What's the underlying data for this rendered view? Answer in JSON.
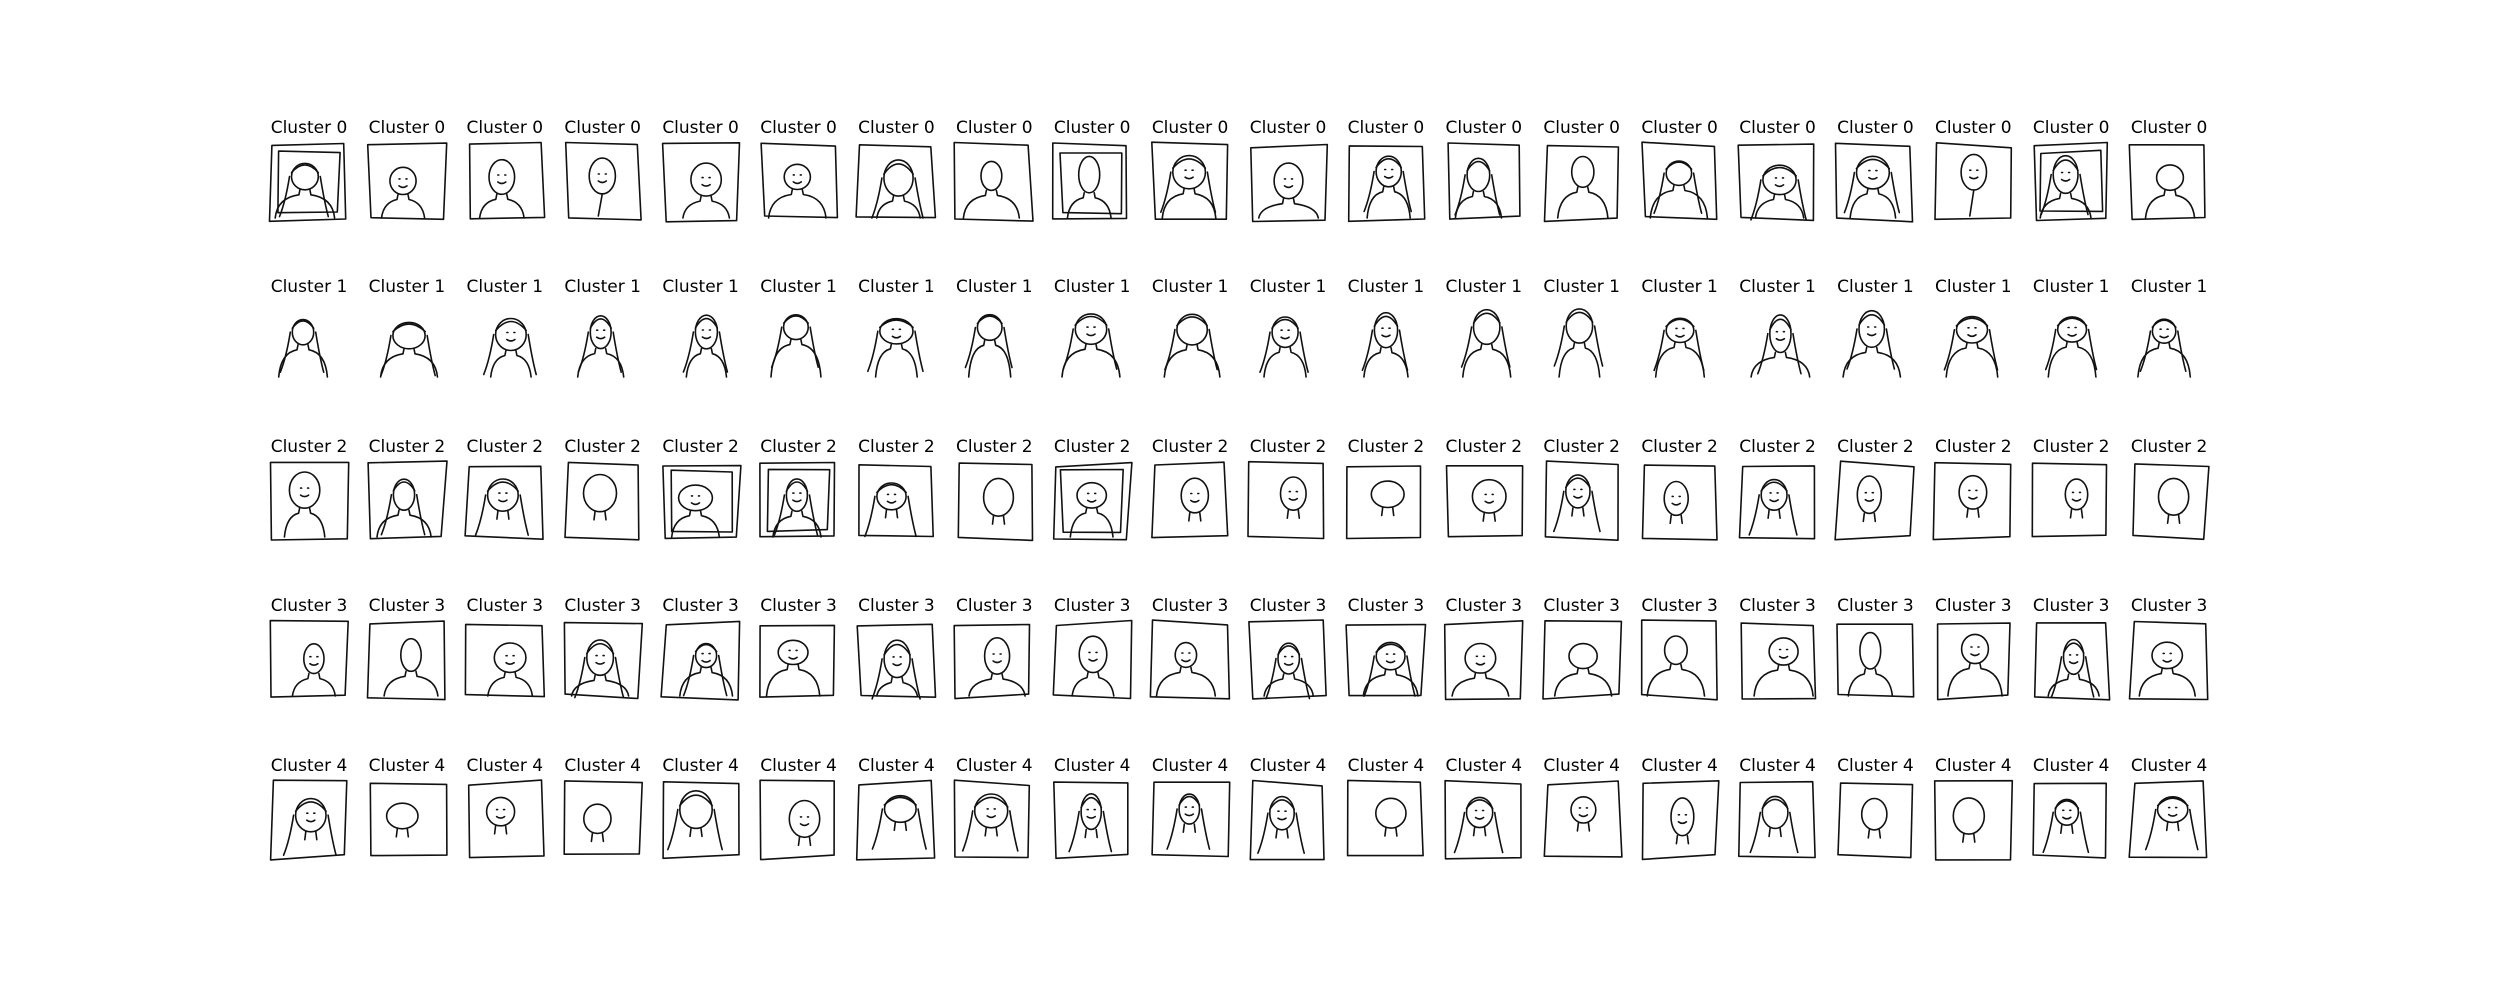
{
  "figure": {
    "rows": [
      {
        "cluster_label": "Cluster 0",
        "items": [
          {
            "label": "Cluster 0",
            "sketch": "portrait-in-frame"
          },
          {
            "label": "Cluster 0",
            "sketch": "figure-in-frame"
          },
          {
            "label": "Cluster 0",
            "sketch": "figure-in-frame"
          },
          {
            "label": "Cluster 0",
            "sketch": "stick-figure-in-frame"
          },
          {
            "label": "Cluster 0",
            "sketch": "figure-in-frame"
          },
          {
            "label": "Cluster 0",
            "sketch": "bust-in-frame"
          },
          {
            "label": "Cluster 0",
            "sketch": "figure-in-frame"
          },
          {
            "label": "Cluster 0",
            "sketch": "portrait-in-frame"
          },
          {
            "label": "Cluster 0",
            "sketch": "portrait-in-frame"
          },
          {
            "label": "Cluster 0",
            "sketch": "bust-in-frame"
          },
          {
            "label": "Cluster 0",
            "sketch": "bust-in-frame"
          },
          {
            "label": "Cluster 0",
            "sketch": "bust-in-frame"
          },
          {
            "label": "Cluster 0",
            "sketch": "bust-in-frame"
          },
          {
            "label": "Cluster 0",
            "sketch": "bust-in-frame"
          },
          {
            "label": "Cluster 0",
            "sketch": "bust-in-frame"
          },
          {
            "label": "Cluster 0",
            "sketch": "figure-in-frame"
          },
          {
            "label": "Cluster 0",
            "sketch": "bust-in-frame"
          },
          {
            "label": "Cluster 0",
            "sketch": "stick-figure-in-frame"
          },
          {
            "label": "Cluster 0",
            "sketch": "portrait-in-frame"
          },
          {
            "label": "Cluster 0",
            "sketch": "portrait-in-frame"
          }
        ]
      },
      {
        "cluster_label": "Cluster 1",
        "items": [
          {
            "label": "Cluster 1",
            "sketch": "face-with-hair"
          },
          {
            "label": "Cluster 1",
            "sketch": "face-with-hair"
          },
          {
            "label": "Cluster 1",
            "sketch": "face-with-hair"
          },
          {
            "label": "Cluster 1",
            "sketch": "face-with-hair"
          },
          {
            "label": "Cluster 1",
            "sketch": "face-with-hair"
          },
          {
            "label": "Cluster 1",
            "sketch": "face-with-hair"
          },
          {
            "label": "Cluster 1",
            "sketch": "face-with-hair"
          },
          {
            "label": "Cluster 1",
            "sketch": "face-with-hair"
          },
          {
            "label": "Cluster 1",
            "sketch": "face-with-hair"
          },
          {
            "label": "Cluster 1",
            "sketch": "face-with-hair"
          },
          {
            "label": "Cluster 1",
            "sketch": "face-with-hair"
          },
          {
            "label": "Cluster 1",
            "sketch": "face-with-hair"
          },
          {
            "label": "Cluster 1",
            "sketch": "face-with-hair"
          },
          {
            "label": "Cluster 1",
            "sketch": "face-with-hair"
          },
          {
            "label": "Cluster 1",
            "sketch": "face-with-hair"
          },
          {
            "label": "Cluster 1",
            "sketch": "face-with-hair"
          },
          {
            "label": "Cluster 1",
            "sketch": "face-with-hair"
          },
          {
            "label": "Cluster 1",
            "sketch": "face-with-hair"
          },
          {
            "label": "Cluster 1",
            "sketch": "face-with-hair"
          },
          {
            "label": "Cluster 1",
            "sketch": "face-with-hair"
          }
        ]
      },
      {
        "cluster_label": "Cluster 2",
        "items": [
          {
            "label": "Cluster 2",
            "sketch": "portrait-in-frame"
          },
          {
            "label": "Cluster 2",
            "sketch": "portrait-in-frame"
          },
          {
            "label": "Cluster 2",
            "sketch": "face-in-frame"
          },
          {
            "label": "Cluster 2",
            "sketch": "face-in-frame"
          },
          {
            "label": "Cluster 2",
            "sketch": "portrait-in-frame"
          },
          {
            "label": "Cluster 2",
            "sketch": "portrait-in-frame"
          },
          {
            "label": "Cluster 2",
            "sketch": "face-in-frame"
          },
          {
            "label": "Cluster 2",
            "sketch": "face-in-frame"
          },
          {
            "label": "Cluster 2",
            "sketch": "portrait-in-frame"
          },
          {
            "label": "Cluster 2",
            "sketch": "face-in-frame"
          },
          {
            "label": "Cluster 2",
            "sketch": "face-in-frame"
          },
          {
            "label": "Cluster 2",
            "sketch": "face-in-frame"
          },
          {
            "label": "Cluster 2",
            "sketch": "face-in-frame"
          },
          {
            "label": "Cluster 2",
            "sketch": "face-in-frame"
          },
          {
            "label": "Cluster 2",
            "sketch": "face-in-frame"
          },
          {
            "label": "Cluster 2",
            "sketch": "face-in-frame"
          },
          {
            "label": "Cluster 2",
            "sketch": "face-in-frame"
          },
          {
            "label": "Cluster 2",
            "sketch": "face-in-frame"
          },
          {
            "label": "Cluster 2",
            "sketch": "face-in-frame"
          },
          {
            "label": "Cluster 2",
            "sketch": "face-in-frame"
          }
        ]
      },
      {
        "cluster_label": "Cluster 3",
        "items": [
          {
            "label": "Cluster 3",
            "sketch": "figure-in-frame"
          },
          {
            "label": "Cluster 3",
            "sketch": "figure-in-frame"
          },
          {
            "label": "Cluster 3",
            "sketch": "figure-in-frame"
          },
          {
            "label": "Cluster 3",
            "sketch": "figure-in-frame"
          },
          {
            "label": "Cluster 3",
            "sketch": "figure-in-frame"
          },
          {
            "label": "Cluster 3",
            "sketch": "figure-in-frame"
          },
          {
            "label": "Cluster 3",
            "sketch": "figure-in-frame"
          },
          {
            "label": "Cluster 3",
            "sketch": "figure-in-frame"
          },
          {
            "label": "Cluster 3",
            "sketch": "figure-in-frame"
          },
          {
            "label": "Cluster 3",
            "sketch": "figure-in-frame"
          },
          {
            "label": "Cluster 3",
            "sketch": "figure-in-frame"
          },
          {
            "label": "Cluster 3",
            "sketch": "figure-in-frame"
          },
          {
            "label": "Cluster 3",
            "sketch": "figure-in-frame"
          },
          {
            "label": "Cluster 3",
            "sketch": "figure-in-frame"
          },
          {
            "label": "Cluster 3",
            "sketch": "figure-in-frame"
          },
          {
            "label": "Cluster 3",
            "sketch": "figure-in-frame"
          },
          {
            "label": "Cluster 3",
            "sketch": "figure-in-frame"
          },
          {
            "label": "Cluster 3",
            "sketch": "figure-in-frame"
          },
          {
            "label": "Cluster 3",
            "sketch": "figure-in-frame"
          },
          {
            "label": "Cluster 3",
            "sketch": "figure-in-frame"
          }
        ]
      },
      {
        "cluster_label": "Cluster 4",
        "items": [
          {
            "label": "Cluster 4",
            "sketch": "face-in-frame"
          },
          {
            "label": "Cluster 4",
            "sketch": "face-in-frame"
          },
          {
            "label": "Cluster 4",
            "sketch": "face-in-frame"
          },
          {
            "label": "Cluster 4",
            "sketch": "face-in-frame"
          },
          {
            "label": "Cluster 4",
            "sketch": "face-in-frame"
          },
          {
            "label": "Cluster 4",
            "sketch": "face-in-frame"
          },
          {
            "label": "Cluster 4",
            "sketch": "face-in-frame"
          },
          {
            "label": "Cluster 4",
            "sketch": "face-in-frame"
          },
          {
            "label": "Cluster 4",
            "sketch": "face-in-frame"
          },
          {
            "label": "Cluster 4",
            "sketch": "face-in-frame"
          },
          {
            "label": "Cluster 4",
            "sketch": "face-in-frame"
          },
          {
            "label": "Cluster 4",
            "sketch": "face-in-frame"
          },
          {
            "label": "Cluster 4",
            "sketch": "face-in-frame"
          },
          {
            "label": "Cluster 4",
            "sketch": "face-in-frame"
          },
          {
            "label": "Cluster 4",
            "sketch": "face-in-frame"
          },
          {
            "label": "Cluster 4",
            "sketch": "face-in-frame"
          },
          {
            "label": "Cluster 4",
            "sketch": "face-in-frame"
          },
          {
            "label": "Cluster 4",
            "sketch": "face-in-frame"
          },
          {
            "label": "Cluster 4",
            "sketch": "face-in-frame"
          },
          {
            "label": "Cluster 4",
            "sketch": "face-in-frame"
          }
        ]
      }
    ]
  }
}
